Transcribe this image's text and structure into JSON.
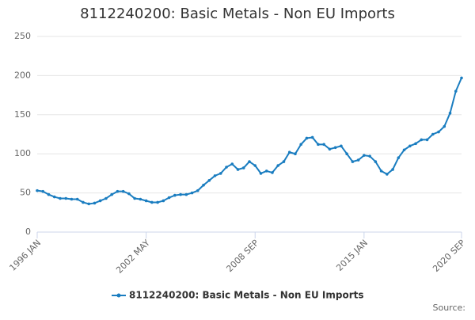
{
  "chart_data": {
    "type": "line",
    "title": "8112240200: Basic Metals - Non EU Imports",
    "source": "Source:",
    "categories": [
      "1996 JAN",
      null,
      null,
      null,
      null,
      null,
      null,
      null,
      null,
      null,
      null,
      null,
      null,
      null,
      null,
      null,
      null,
      null,
      null,
      "2002 MAY",
      null,
      null,
      null,
      null,
      null,
      null,
      null,
      null,
      null,
      null,
      null,
      null,
      null,
      null,
      null,
      null,
      null,
      null,
      "2008 SEP",
      null,
      null,
      null,
      null,
      null,
      null,
      null,
      null,
      null,
      null,
      null,
      null,
      null,
      null,
      null,
      null,
      null,
      null,
      "2015 JAN",
      null,
      null,
      null,
      null,
      null,
      null,
      null,
      null,
      null,
      null,
      null,
      null,
      null,
      null,
      null,
      null,
      "2020 SEP"
    ],
    "series": [
      {
        "name": "8112240200: Basic Metals - Non EU Imports",
        "color": "#1a7dc0",
        "values": [
          53,
          52,
          48,
          45,
          43,
          43,
          42,
          42,
          38,
          36,
          37,
          40,
          43,
          48,
          52,
          52,
          49,
          43,
          42,
          40,
          38,
          38,
          40,
          44,
          47,
          48,
          48,
          50,
          53,
          60,
          66,
          72,
          75,
          83,
          87,
          80,
          82,
          90,
          85,
          75,
          78,
          76,
          85,
          90,
          102,
          100,
          112,
          120,
          121,
          112,
          112,
          106,
          108,
          110,
          100,
          90,
          92,
          98,
          97,
          90,
          78,
          74,
          80,
          95,
          105,
          110,
          113,
          118,
          118,
          125,
          128,
          135,
          152,
          180,
          197
        ]
      }
    ],
    "ylim": [
      0,
      250
    ],
    "yticks": [
      0,
      50,
      100,
      150,
      200,
      250
    ],
    "grid": true
  }
}
